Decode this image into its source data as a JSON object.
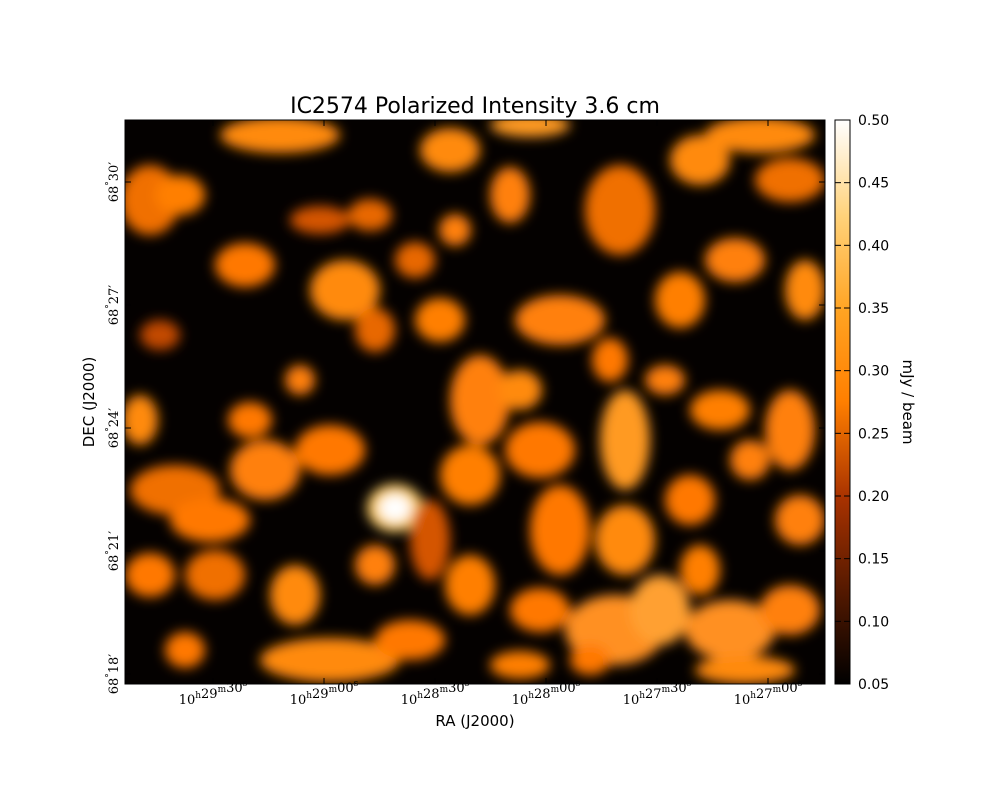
{
  "chart_data": {
    "type": "heatmap",
    "title": "IC2574 Polarized Intensity 3.6 cm",
    "xlabel": "RA (J2000)",
    "ylabel": "DEC (J2000)",
    "colorbar_label": "mJy / beam",
    "colormap": "afmhot",
    "vmin": 0.05,
    "vmax": 0.5,
    "colorbar_ticks": [
      "0.05",
      "0.10",
      "0.15",
      "0.20",
      "0.25",
      "0.30",
      "0.35",
      "0.40",
      "0.45",
      "0.50"
    ],
    "x_tick_labels": [
      {
        "h": "10",
        "m": "29",
        "s": "30"
      },
      {
        "h": "10",
        "m": "29",
        "s": "00"
      },
      {
        "h": "10",
        "m": "28",
        "s": "30"
      },
      {
        "h": "10",
        "m": "28",
        "s": "00"
      },
      {
        "h": "10",
        "m": "27",
        "s": "30"
      },
      {
        "h": "10",
        "m": "27",
        "s": "00"
      }
    ],
    "y_tick_labels": [
      {
        "deg": "68",
        "arcmin": "18"
      },
      {
        "deg": "68",
        "arcmin": "21"
      },
      {
        "deg": "68",
        "arcmin": "24"
      },
      {
        "deg": "68",
        "arcmin": "27"
      },
      {
        "deg": "68",
        "arcmin": "30"
      }
    ],
    "peak": {
      "value": 0.5
    }
  }
}
